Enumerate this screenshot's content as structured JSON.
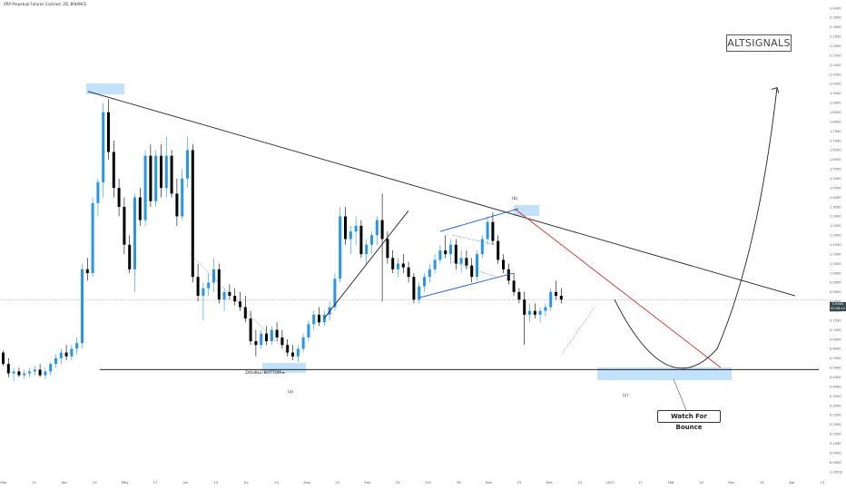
{
  "header": {
    "symbol_title": "XRP Perpetual Futures Contract, 2D, BINANCE"
  },
  "brand": {
    "logo_text": "ALTSIGNALS"
  },
  "callout": {
    "text": "Watch For Bounce"
  },
  "price_tag": {
    "price": "0.8584",
    "countdown": "00:56:44"
  },
  "colors": {
    "up": "#2196f3",
    "down": "#000000",
    "support_zone": "#bbdefb",
    "trend_red": "#d32f2f",
    "channel_blue": "#1e5bd6",
    "line": "#222222"
  },
  "chart_data": {
    "type": "candlestick",
    "x_tick_labels": [
      "Mar",
      "14",
      "Apr",
      "19",
      "May",
      "17",
      "Jun",
      "14",
      "Jul",
      "14",
      "Aug",
      "15",
      "Sep",
      "20",
      "Oct",
      "18",
      "Nov",
      "15",
      "Dec",
      "13",
      "2023",
      "17",
      "Feb",
      "14",
      "Mar",
      "14",
      "Apr",
      "13"
    ],
    "y_ticks": [
      -0.05,
      0.0,
      0.05,
      0.1,
      0.15,
      0.2,
      0.25,
      0.3,
      0.35,
      0.4,
      0.45,
      0.5,
      0.55,
      0.6,
      0.65,
      0.7,
      0.75,
      0.8,
      0.85,
      0.9,
      0.95,
      1.0,
      1.05,
      1.1,
      1.15,
      1.2,
      1.25,
      1.3,
      1.35,
      1.4,
      1.45,
      1.5,
      1.55,
      1.6,
      1.65,
      1.7,
      1.75,
      1.8,
      1.85,
      1.9,
      1.95,
      2.0,
      2.05,
      2.1,
      2.15,
      2.2,
      2.25,
      2.3,
      2.35,
      2.4
    ],
    "ylim": [
      -0.05,
      2.4
    ],
    "last_price": 0.8584,
    "candles": [
      [
        0.58,
        0.59,
        0.51,
        0.52
      ],
      [
        0.52,
        0.55,
        0.45,
        0.47
      ],
      [
        0.47,
        0.5,
        0.43,
        0.48
      ],
      [
        0.48,
        0.5,
        0.45,
        0.46
      ],
      [
        0.46,
        0.49,
        0.44,
        0.47
      ],
      [
        0.47,
        0.5,
        0.45,
        0.48
      ],
      [
        0.48,
        0.51,
        0.46,
        0.49
      ],
      [
        0.49,
        0.52,
        0.45,
        0.46
      ],
      [
        0.46,
        0.5,
        0.44,
        0.48
      ],
      [
        0.48,
        0.53,
        0.46,
        0.52
      ],
      [
        0.52,
        0.57,
        0.5,
        0.55
      ],
      [
        0.55,
        0.6,
        0.52,
        0.58
      ],
      [
        0.58,
        0.62,
        0.54,
        0.56
      ],
      [
        0.56,
        0.62,
        0.54,
        0.6
      ],
      [
        0.6,
        0.66,
        0.57,
        0.63
      ],
      [
        0.63,
        1.05,
        0.6,
        1.02
      ],
      [
        1.02,
        1.08,
        0.96,
        1.0
      ],
      [
        1.0,
        1.4,
        0.98,
        1.37
      ],
      [
        1.37,
        1.5,
        1.3,
        1.48
      ],
      [
        1.48,
        1.9,
        1.4,
        1.85
      ],
      [
        1.85,
        1.92,
        1.6,
        1.64
      ],
      [
        1.64,
        1.7,
        1.4,
        1.45
      ],
      [
        1.45,
        1.5,
        1.3,
        1.35
      ],
      [
        1.35,
        1.4,
        1.1,
        1.15
      ],
      [
        1.15,
        1.2,
        1.0,
        1.02
      ],
      [
        1.02,
        1.42,
        0.9,
        1.4
      ],
      [
        1.4,
        1.45,
        1.25,
        1.28
      ],
      [
        1.28,
        1.65,
        1.25,
        1.62
      ],
      [
        1.62,
        1.68,
        1.35,
        1.38
      ],
      [
        1.38,
        1.65,
        1.35,
        1.62
      ],
      [
        1.62,
        1.68,
        1.4,
        1.45
      ],
      [
        1.45,
        1.72,
        1.4,
        1.62
      ],
      [
        1.62,
        1.65,
        1.4,
        1.42
      ],
      [
        1.42,
        1.5,
        1.25,
        1.3
      ],
      [
        1.3,
        1.55,
        1.28,
        1.5
      ],
      [
        1.5,
        1.72,
        1.45,
        1.65
      ],
      [
        1.65,
        1.68,
        0.95,
        0.98
      ],
      [
        0.98,
        1.05,
        0.85,
        0.88
      ],
      [
        0.88,
        0.95,
        0.75,
        0.92
      ],
      [
        0.92,
        1.0,
        0.88,
        0.95
      ],
      [
        0.95,
        1.08,
        0.9,
        1.02
      ],
      [
        1.02,
        1.05,
        0.84,
        0.86
      ],
      [
        0.86,
        0.92,
        0.8,
        0.9
      ],
      [
        0.9,
        0.94,
        0.86,
        0.88
      ],
      [
        0.88,
        0.92,
        0.83,
        0.85
      ],
      [
        0.85,
        0.9,
        0.8,
        0.82
      ],
      [
        0.82,
        0.88,
        0.74,
        0.76
      ],
      [
        0.76,
        0.8,
        0.62,
        0.64
      ],
      [
        0.64,
        0.7,
        0.56,
        0.62
      ],
      [
        0.62,
        0.7,
        0.6,
        0.68
      ],
      [
        0.68,
        0.72,
        0.62,
        0.64
      ],
      [
        0.64,
        0.72,
        0.62,
        0.7
      ],
      [
        0.7,
        0.74,
        0.64,
        0.66
      ],
      [
        0.66,
        0.7,
        0.6,
        0.62
      ],
      [
        0.62,
        0.65,
        0.56,
        0.58
      ],
      [
        0.58,
        0.62,
        0.54,
        0.56
      ],
      [
        0.56,
        0.62,
        0.53,
        0.6
      ],
      [
        0.6,
        0.68,
        0.58,
        0.66
      ],
      [
        0.66,
        0.75,
        0.64,
        0.73
      ],
      [
        0.73,
        0.8,
        0.7,
        0.78
      ],
      [
        0.78,
        0.82,
        0.72,
        0.74
      ],
      [
        0.74,
        0.8,
        0.72,
        0.78
      ],
      [
        0.78,
        0.85,
        0.75,
        0.82
      ],
      [
        0.82,
        1.0,
        0.8,
        0.97
      ],
      [
        0.97,
        1.35,
        0.95,
        1.3
      ],
      [
        1.3,
        1.35,
        1.15,
        1.18
      ],
      [
        1.18,
        1.25,
        1.1,
        1.22
      ],
      [
        1.22,
        1.3,
        1.15,
        1.25
      ],
      [
        1.25,
        1.28,
        1.08,
        1.1
      ],
      [
        1.1,
        1.18,
        1.05,
        1.15
      ],
      [
        1.15,
        1.22,
        1.1,
        1.2
      ],
      [
        1.2,
        1.3,
        1.15,
        1.28
      ],
      [
        1.28,
        1.42,
        0.85,
        1.18
      ],
      [
        1.18,
        1.22,
        1.05,
        1.08
      ],
      [
        1.08,
        1.12,
        1.0,
        1.02
      ],
      [
        1.02,
        1.08,
        0.98,
        1.05
      ],
      [
        1.05,
        1.1,
        1.0,
        1.03
      ],
      [
        1.03,
        1.06,
        0.95,
        0.98
      ],
      [
        0.98,
        1.0,
        0.84,
        0.86
      ],
      [
        0.86,
        0.95,
        0.84,
        0.93
      ],
      [
        0.93,
        1.0,
        0.9,
        0.98
      ],
      [
        0.98,
        1.05,
        0.95,
        1.02
      ],
      [
        1.02,
        1.1,
        1.0,
        1.07
      ],
      [
        1.07,
        1.15,
        1.05,
        1.12
      ],
      [
        1.12,
        1.2,
        1.08,
        1.1
      ],
      [
        1.1,
        1.18,
        1.05,
        1.15
      ],
      [
        1.15,
        1.18,
        1.02,
        1.05
      ],
      [
        1.05,
        1.12,
        1.0,
        1.08
      ],
      [
        1.08,
        1.12,
        1.02,
        1.04
      ],
      [
        1.04,
        1.08,
        0.95,
        0.98
      ],
      [
        0.98,
        1.12,
        0.96,
        1.1
      ],
      [
        1.1,
        1.2,
        1.08,
        1.18
      ],
      [
        1.18,
        1.3,
        1.15,
        1.27
      ],
      [
        1.27,
        1.32,
        1.15,
        1.17
      ],
      [
        1.17,
        1.2,
        1.05,
        1.07
      ],
      [
        1.07,
        1.1,
        1.0,
        1.02
      ],
      [
        1.02,
        1.05,
        0.94,
        0.96
      ],
      [
        0.96,
        1.0,
        0.88,
        0.9
      ],
      [
        0.9,
        0.92,
        0.84,
        0.86
      ],
      [
        0.86,
        0.9,
        0.62,
        0.78
      ],
      [
        0.78,
        0.84,
        0.74,
        0.8
      ],
      [
        0.8,
        0.84,
        0.76,
        0.78
      ],
      [
        0.78,
        0.82,
        0.74,
        0.8
      ],
      [
        0.8,
        0.84,
        0.77,
        0.82
      ],
      [
        0.82,
        0.92,
        0.8,
        0.9
      ],
      [
        0.9,
        0.96,
        0.86,
        0.88
      ],
      [
        0.88,
        0.92,
        0.84,
        0.86
      ]
    ],
    "support_level": 0.49,
    "annotations": [
      "DOUBLE BOTTOM",
      "(a)",
      "(b)",
      "(c)"
    ]
  }
}
